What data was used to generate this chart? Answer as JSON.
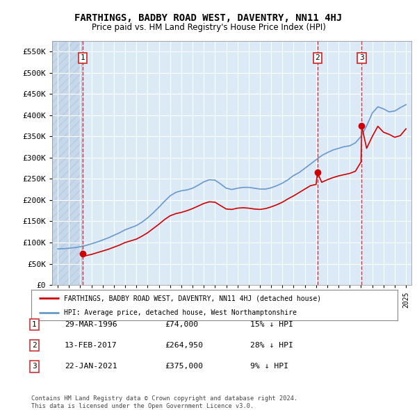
{
  "title": "FARTHINGS, BADBY ROAD WEST, DAVENTRY, NN11 4HJ",
  "subtitle": "Price paid vs. HM Land Registry's House Price Index (HPI)",
  "ylim": [
    0,
    575000
  ],
  "yticks": [
    0,
    50000,
    100000,
    150000,
    200000,
    250000,
    300000,
    350000,
    400000,
    450000,
    500000,
    550000
  ],
  "ytick_labels": [
    "£0",
    "£50K",
    "£100K",
    "£150K",
    "£200K",
    "£250K",
    "£300K",
    "£350K",
    "£400K",
    "£450K",
    "£500K",
    "£550K"
  ],
  "xlim_start": 1993.5,
  "xlim_end": 2025.5,
  "bg_color": "#dce9f7",
  "hatch_color": "#c8d8ec",
  "grid_color": "#ffffff",
  "sale_dates": [
    1996.23,
    2017.12,
    2021.06
  ],
  "sale_prices": [
    74000,
    264950,
    375000
  ],
  "sale_labels": [
    "1",
    "2",
    "3"
  ],
  "red_line_color": "#cc0000",
  "blue_line_color": "#6699cc",
  "dashed_line_color": "#cc3333",
  "legend_house_label": "FARTHINGS, BADBY ROAD WEST, DAVENTRY, NN11 4HJ (detached house)",
  "legend_hpi_label": "HPI: Average price, detached house, West Northamptonshire",
  "table_rows": [
    {
      "num": "1",
      "date": "29-MAR-1996",
      "price": "£74,000",
      "change": "15% ↓ HPI"
    },
    {
      "num": "2",
      "date": "13-FEB-2017",
      "price": "£264,950",
      "change": "28% ↓ HPI"
    },
    {
      "num": "3",
      "date": "22-JAN-2021",
      "price": "£375,000",
      "change": "9% ↓ HPI"
    }
  ],
  "footer": "Contains HM Land Registry data © Crown copyright and database right 2024.\nThis data is licensed under the Open Government Licence v3.0.",
  "hpi_x": [
    1994,
    1994.5,
    1995,
    1995.5,
    1996,
    1996.5,
    1997,
    1997.5,
    1998,
    1998.5,
    1999,
    1999.5,
    2000,
    2000.5,
    2001,
    2001.5,
    2002,
    2002.5,
    2003,
    2003.5,
    2004,
    2004.5,
    2005,
    2005.5,
    2006,
    2006.5,
    2007,
    2007.5,
    2008,
    2008.5,
    2009,
    2009.5,
    2010,
    2010.5,
    2011,
    2011.5,
    2012,
    2012.5,
    2013,
    2013.5,
    2014,
    2014.5,
    2015,
    2015.5,
    2016,
    2016.5,
    2017,
    2017.5,
    2018,
    2018.5,
    2019,
    2019.5,
    2020,
    2020.5,
    2021,
    2021.5,
    2022,
    2022.5,
    2023,
    2023.5,
    2024,
    2024.5,
    2025
  ],
  "hpi_y": [
    85000,
    85500,
    86500,
    88000,
    90000,
    93000,
    97000,
    101000,
    106000,
    111000,
    117000,
    123000,
    130000,
    135000,
    140000,
    148000,
    158000,
    170000,
    183000,
    197000,
    210000,
    218000,
    222000,
    224000,
    228000,
    235000,
    243000,
    248000,
    247000,
    238000,
    228000,
    225000,
    228000,
    230000,
    230000,
    228000,
    226000,
    226000,
    229000,
    234000,
    240000,
    248000,
    258000,
    265000,
    275000,
    285000,
    295000,
    305000,
    312000,
    318000,
    322000,
    326000,
    328000,
    335000,
    350000,
    375000,
    405000,
    420000,
    415000,
    408000,
    410000,
    418000,
    425000
  ],
  "price_x": [
    1996.23,
    1996.5,
    1997,
    1997.5,
    1998,
    1998.5,
    1999,
    1999.5,
    2000,
    2000.5,
    2001,
    2001.5,
    2002,
    2002.5,
    2003,
    2003.5,
    2004,
    2004.5,
    2005,
    2005.5,
    2006,
    2006.5,
    2007,
    2007.5,
    2008,
    2008.5,
    2009,
    2009.5,
    2010,
    2010.5,
    2011,
    2011.5,
    2012,
    2012.5,
    2013,
    2013.5,
    2014,
    2014.5,
    2015,
    2015.5,
    2016,
    2016.5,
    2017,
    2017.12,
    2017.5,
    2018,
    2018.5,
    2019,
    2019.5,
    2020,
    2020.5,
    2021,
    2021.06,
    2021.5,
    2022,
    2022.5,
    2023,
    2023.5,
    2024,
    2024.5,
    2025
  ],
  "price_y": [
    74000,
    69000,
    72000,
    76000,
    80000,
    84000,
    89000,
    94000,
    100000,
    104000,
    108000,
    115000,
    123000,
    133000,
    143000,
    154000,
    163000,
    168000,
    171000,
    175000,
    180000,
    186000,
    192000,
    196000,
    195000,
    187000,
    179000,
    178000,
    181000,
    182000,
    181000,
    179000,
    178000,
    180000,
    184000,
    189000,
    195000,
    203000,
    210000,
    218000,
    226000,
    234000,
    237000,
    264950,
    242000,
    248000,
    253000,
    257000,
    260000,
    263000,
    268000,
    290000,
    375000,
    322000,
    350000,
    374000,
    360000,
    355000,
    348000,
    352000,
    368000
  ]
}
